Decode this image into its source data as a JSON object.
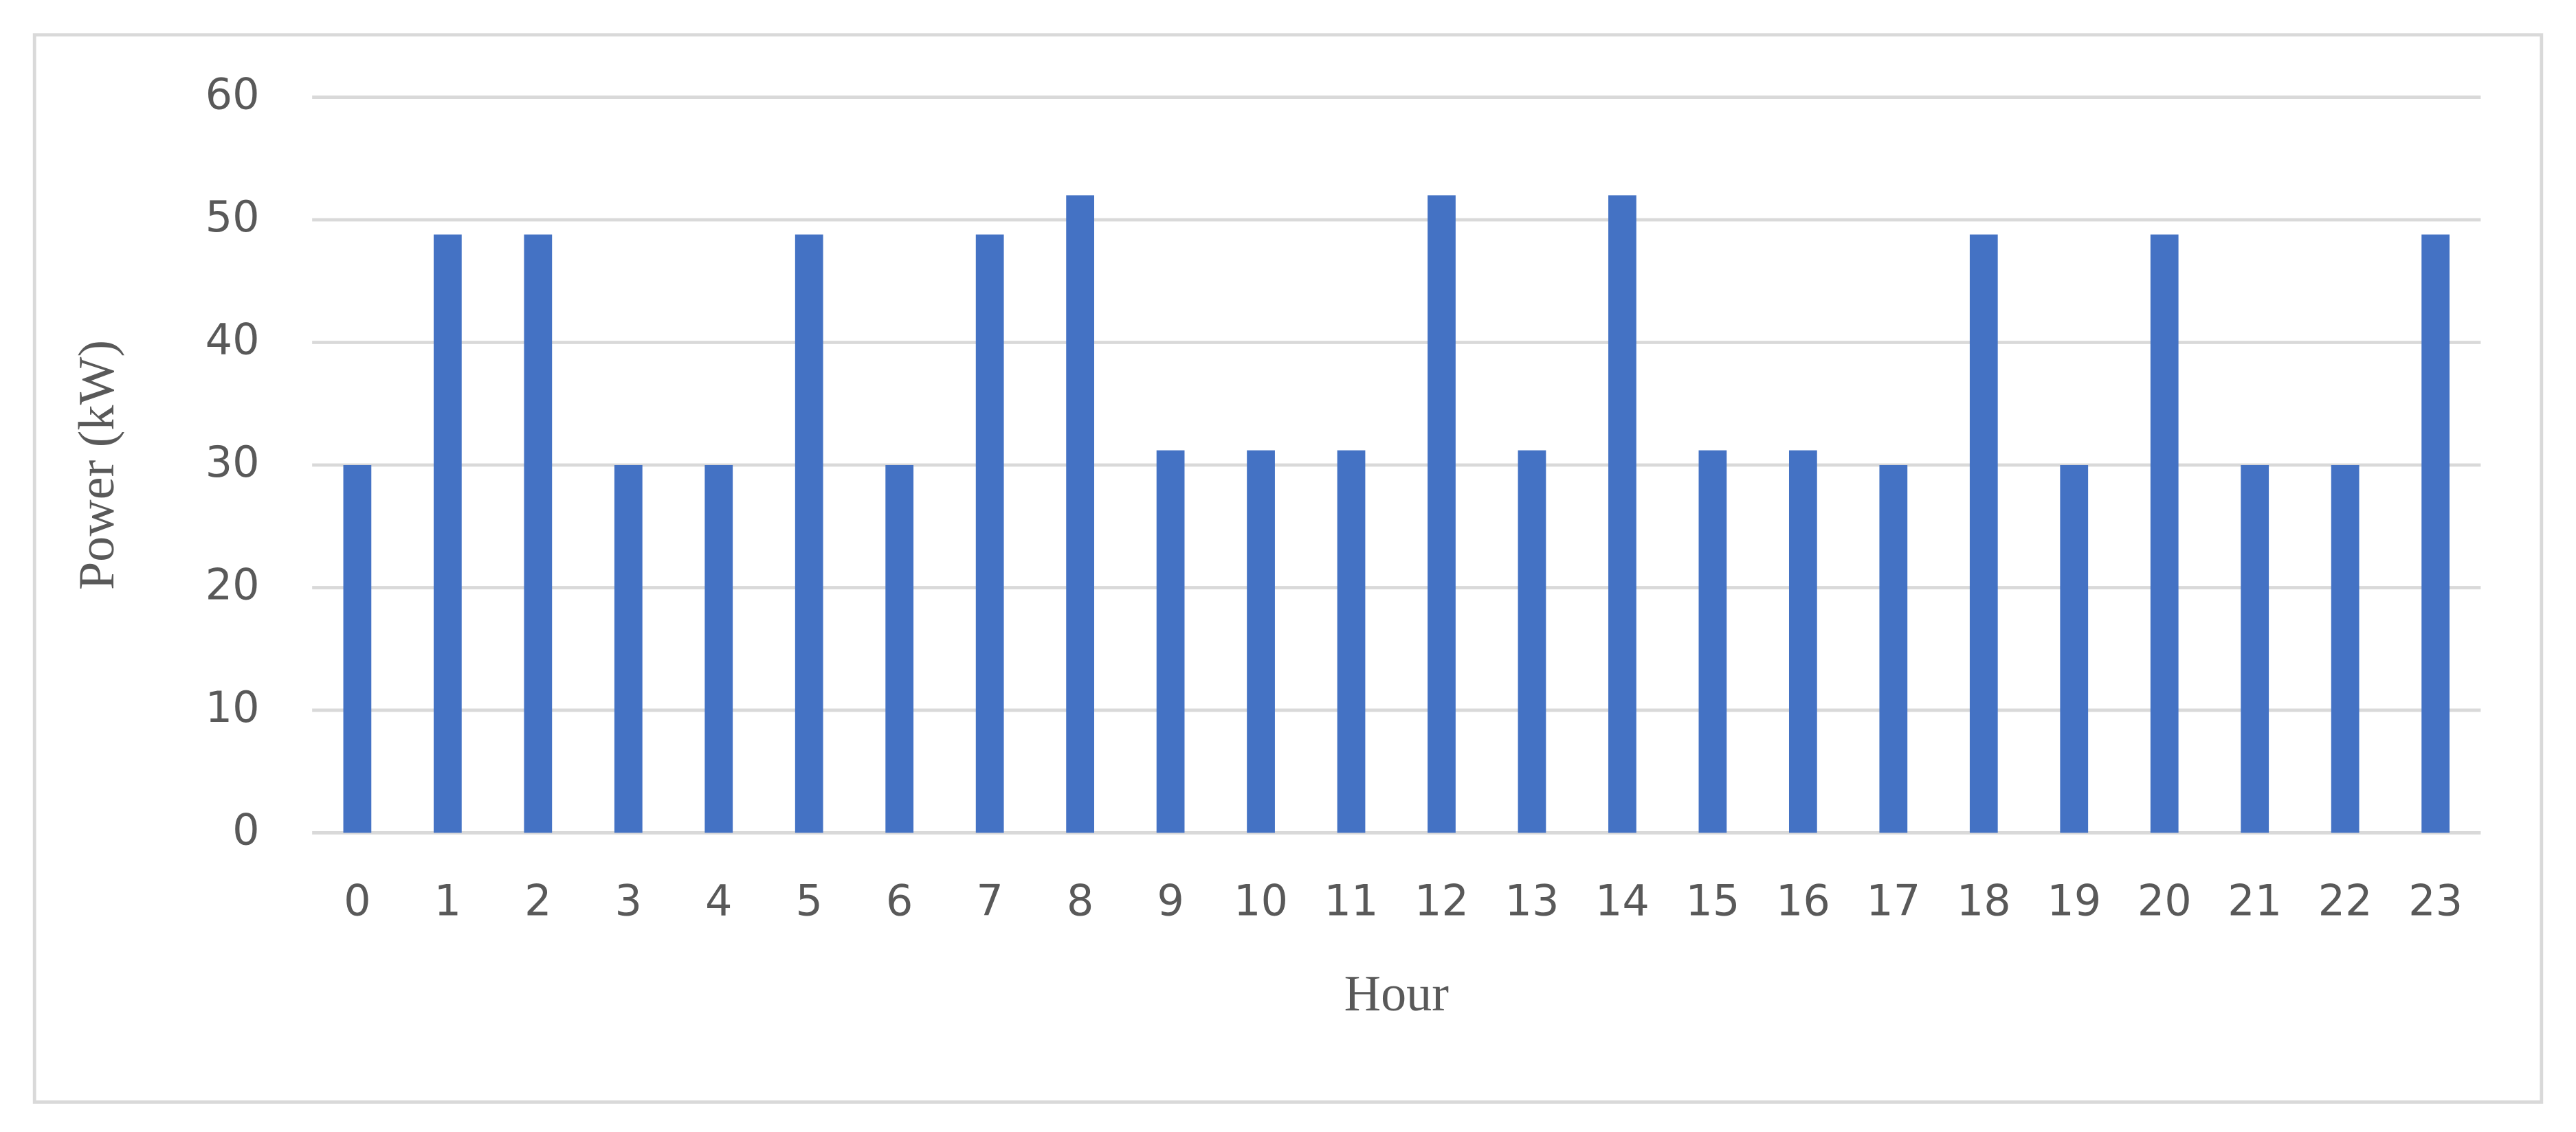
{
  "chart_data": {
    "type": "bar",
    "x_label": "Hour",
    "y_label": "Power (kW)",
    "categories": [
      "0",
      "1",
      "2",
      "3",
      "4",
      "5",
      "6",
      "7",
      "8",
      "9",
      "10",
      "11",
      "12",
      "13",
      "14",
      "15",
      "16",
      "17",
      "18",
      "19",
      "20",
      "21",
      "22",
      "23"
    ],
    "values": [
      30,
      48.8,
      48.8,
      30,
      30,
      48.8,
      30,
      48.8,
      52,
      31.2,
      31.2,
      31.2,
      52,
      31.2,
      52,
      31.2,
      31.2,
      30,
      48.8,
      30,
      48.8,
      30,
      30,
      48.8
    ],
    "color": "#4472c4",
    "ylim": [
      0,
      60
    ],
    "yticks": [
      0,
      10,
      20,
      30,
      40,
      50,
      60
    ],
    "grid": true
  }
}
